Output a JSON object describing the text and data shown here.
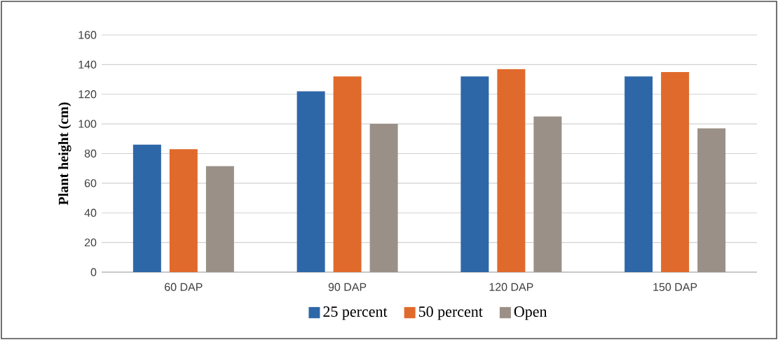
{
  "chart_data": {
    "type": "bar",
    "ylabel": "Plant height (cm)",
    "categories": [
      "60 DAP",
      "90 DAP",
      "120 DAP",
      "150 DAP"
    ],
    "series": [
      {
        "name": "25 percent",
        "color": "#2e67a8",
        "values": [
          86,
          122,
          132,
          132
        ]
      },
      {
        "name": "50 percent",
        "color": "#e06a2c",
        "values": [
          83,
          132,
          137,
          135
        ]
      },
      {
        "name": "Open",
        "color": "#9a9088",
        "values": [
          71.5,
          100,
          105,
          97
        ]
      }
    ],
    "ylim": [
      0,
      160
    ],
    "yticks": [
      0,
      20,
      40,
      60,
      80,
      100,
      120,
      140,
      160
    ],
    "grid": "y",
    "legend": "bottom"
  }
}
